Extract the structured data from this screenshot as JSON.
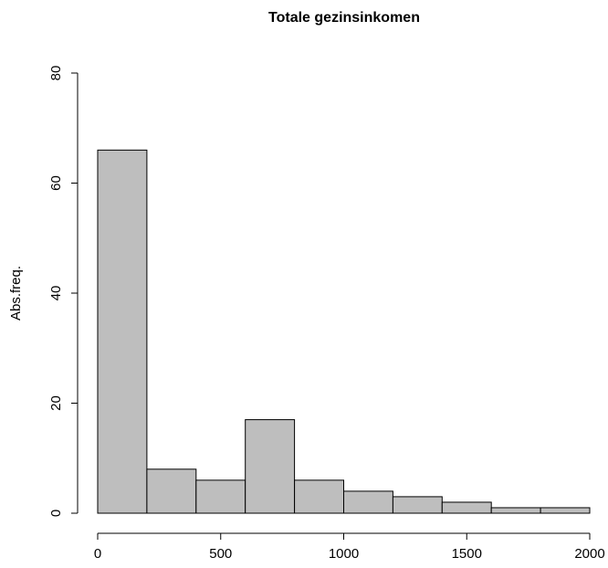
{
  "chart_data": {
    "type": "histogram",
    "title": "Totale gezinsinkomen",
    "y_label": "Abs.freq.",
    "bins": [
      0,
      200,
      400,
      600,
      800,
      1000,
      1200,
      1400,
      1600,
      1800,
      2000
    ],
    "values": [
      66,
      8,
      6,
      17,
      6,
      4,
      3,
      2,
      1,
      1
    ],
    "color": "#bebebe",
    "xlim": [
      0,
      2000
    ],
    "xticks": [
      0,
      500,
      1000,
      1500,
      2000
    ],
    "ylim": [
      0,
      80
    ],
    "yticks": [
      0,
      20,
      40,
      60,
      80
    ],
    "grid": false
  }
}
